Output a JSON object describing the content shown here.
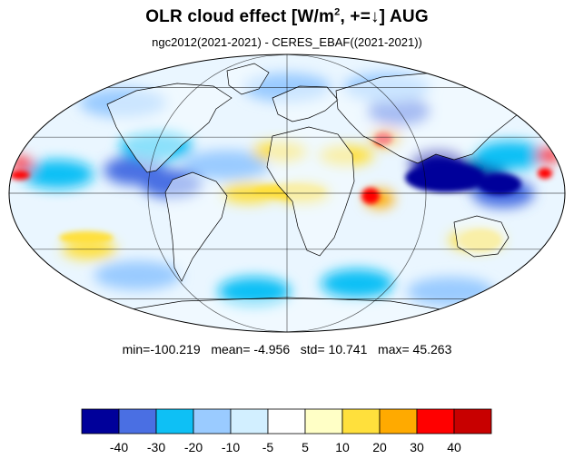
{
  "title": {
    "main": "OLR cloud effect [W/m",
    "sup": "2",
    "rest": ", +=↓]  AUG"
  },
  "subtitle": "ngc2012(2021-2021) - CERES_EBAF((2021-2021))",
  "stats": {
    "min_label": "min=",
    "min": "-100.219",
    "mean_label": "mean=",
    "mean": "-4.956",
    "std_label": "std=",
    "std": "10.741",
    "max_label": "max=",
    "max": "45.263"
  },
  "colorbar": {
    "colors": [
      "#00009a",
      "#4a6fe3",
      "#0ec0f5",
      "#9acbff",
      "#d2efff",
      "#ffffff",
      "#ffffc6",
      "#ffe03c",
      "#ffaa00",
      "#ff0000",
      "#c80000"
    ],
    "tick_labels": [
      "-40",
      "-30",
      "-20",
      "-10",
      "-5",
      "5",
      "10",
      "20",
      "30",
      "40"
    ]
  },
  "map": {
    "projection": "Mollweide",
    "grid": true,
    "coastlines": true,
    "field_blobs": [
      {
        "lon": -150,
        "lat": 10,
        "class": "blue-mid"
      },
      {
        "lon": -100,
        "lat": 12,
        "class": "blue-strong"
      },
      {
        "lon": -90,
        "lat": 25,
        "class": "blue-mid"
      },
      {
        "lon": -75,
        "lat": 5,
        "class": "blue-strong"
      },
      {
        "lon": -40,
        "lat": 15,
        "class": "blue-light"
      },
      {
        "lon": 70,
        "lat": 30,
        "class": "orange"
      },
      {
        "lon": 90,
        "lat": 45,
        "class": "blue-strong"
      },
      {
        "lon": 100,
        "lat": 15,
        "class": "navy"
      },
      {
        "lon": 125,
        "lat": 10,
        "class": "navy"
      },
      {
        "lon": 140,
        "lat": 0,
        "class": "blue-strong"
      },
      {
        "lon": 150,
        "lat": 20,
        "class": "blue-mid"
      },
      {
        "lon": 175,
        "lat": 20,
        "class": "red"
      },
      {
        "lon": -175,
        "lat": 15,
        "class": "red"
      },
      {
        "lon": 10,
        "lat": 0,
        "class": "yellow"
      },
      {
        "lon": 60,
        "lat": -3,
        "class": "orange"
      },
      {
        "lon": -25,
        "lat": 0,
        "class": "yellow"
      },
      {
        "lon": -5,
        "lat": 22,
        "class": "yellow"
      },
      {
        "lon": 40,
        "lat": 20,
        "class": "yellow"
      },
      {
        "lon": 130,
        "lat": -25,
        "class": "yellow"
      },
      {
        "lon": -140,
        "lat": -30,
        "class": "yellow"
      },
      {
        "lon": -30,
        "lat": -55,
        "class": "blue-mid"
      },
      {
        "lon": 60,
        "lat": -50,
        "class": "blue-mid"
      },
      {
        "lon": 150,
        "lat": -55,
        "class": "blue-light"
      },
      {
        "lon": -120,
        "lat": -45,
        "class": "blue-light"
      },
      {
        "lon": 0,
        "lat": 60,
        "class": "blue-light"
      },
      {
        "lon": 100,
        "lat": 60,
        "class": "blue-light"
      },
      {
        "lon": -140,
        "lat": 50,
        "class": "blue-light"
      }
    ]
  }
}
